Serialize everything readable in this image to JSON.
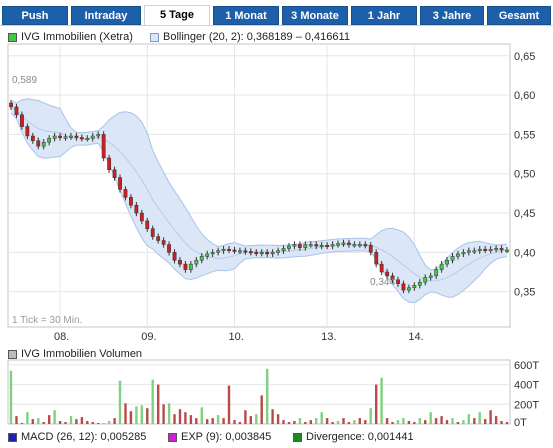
{
  "tabs": [
    {
      "label": "Push",
      "active": false
    },
    {
      "label": "Intraday",
      "active": false
    },
    {
      "label": "5 Tage",
      "active": true
    },
    {
      "label": "1 Monat",
      "active": false
    },
    {
      "label": "3 Monate",
      "active": false
    },
    {
      "label": "1 Jahr",
      "active": false
    },
    {
      "label": "3 Jahre",
      "active": false
    },
    {
      "label": "Gesamt",
      "active": false
    }
  ],
  "legend_main": {
    "price": "IVG Immobilien (Xetra)",
    "bollinger": "Bollinger (20, 2): 0,368189 – 0,416611"
  },
  "legend_volume": {
    "label": "IVG Immobilien Volumen"
  },
  "legend_indicators": {
    "macd": "MACD (26, 12): 0,005285",
    "exp": "EXP (9): 0,003845",
    "divergence": "Divergence: 0,001441"
  },
  "colors": {
    "tab_bg": "#1d5fa8",
    "up": "#44c744",
    "down": "#cc1f1f",
    "band_fill": "#dbe7f7",
    "band_line": "#a9c3e8",
    "volume": "#b84a4a"
  },
  "chart_data": [
    {
      "type": "candlestick",
      "title": "",
      "xlabel": "",
      "ylabel": "",
      "x_ticks": [
        "08.",
        "09.",
        "10.",
        "13.",
        "14."
      ],
      "y_ticks": [
        "0,65",
        "0,60",
        "0,55",
        "0,50",
        "0,45",
        "0,40",
        "0,35"
      ],
      "ylim": [
        0.305,
        0.665
      ],
      "annotations": {
        "high": "0,589",
        "low": "0,344",
        "note": "1 Tick = 30 Min."
      },
      "series": [
        {
          "values": [
            0.585,
            0.575,
            0.56,
            0.548,
            0.542,
            0.535,
            0.54,
            0.545,
            0.548,
            0.546,
            0.547,
            0.548,
            0.546,
            0.545,
            0.545,
            0.548,
            0.55,
            0.52,
            0.505,
            0.495,
            0.48,
            0.47,
            0.46,
            0.45,
            0.44,
            0.43,
            0.42,
            0.415,
            0.41,
            0.4,
            0.39,
            0.385,
            0.378,
            0.385,
            0.39,
            0.395,
            0.398,
            0.4,
            0.402,
            0.404,
            0.403,
            0.402,
            0.402,
            0.401,
            0.4,
            0.399,
            0.4,
            0.398,
            0.4,
            0.402,
            0.405,
            0.408,
            0.41,
            0.406,
            0.41,
            0.41,
            0.408,
            0.409,
            0.408,
            0.41,
            0.411,
            0.412,
            0.41,
            0.41,
            0.41,
            0.409,
            0.4,
            0.385,
            0.375,
            0.37,
            0.365,
            0.36,
            0.352,
            0.355,
            0.358,
            0.362,
            0.368,
            0.37,
            0.378,
            0.385,
            0.39,
            0.395,
            0.398,
            0.4,
            0.402,
            0.402,
            0.404,
            0.403,
            0.404,
            0.405,
            0.403,
            0.403
          ]
        }
      ]
    },
    {
      "type": "bar",
      "title": "",
      "y_ticks": [
        "600T",
        "400T",
        "200T",
        "0T"
      ],
      "ylim": [
        0,
        650
      ],
      "values": [
        540,
        80,
        10,
        120,
        50,
        60,
        20,
        90,
        140,
        30,
        20,
        80,
        50,
        70,
        30,
        20,
        10,
        10,
        30,
        60,
        440,
        210,
        130,
        180,
        190,
        160,
        450,
        400,
        200,
        210,
        100,
        150,
        120,
        90,
        60,
        170,
        50,
        60,
        90,
        60,
        390,
        40,
        20,
        140,
        80,
        100,
        290,
        560,
        150,
        100,
        40,
        20,
        30,
        60,
        20,
        40,
        60,
        120,
        60,
        20,
        30,
        60,
        20,
        40,
        60,
        40,
        160,
        400,
        470,
        60,
        20,
        40,
        60,
        30,
        20,
        60,
        40,
        120,
        60,
        80,
        40,
        60,
        20,
        40,
        100,
        60,
        120,
        50,
        140,
        80,
        30,
        20
      ]
    }
  ]
}
